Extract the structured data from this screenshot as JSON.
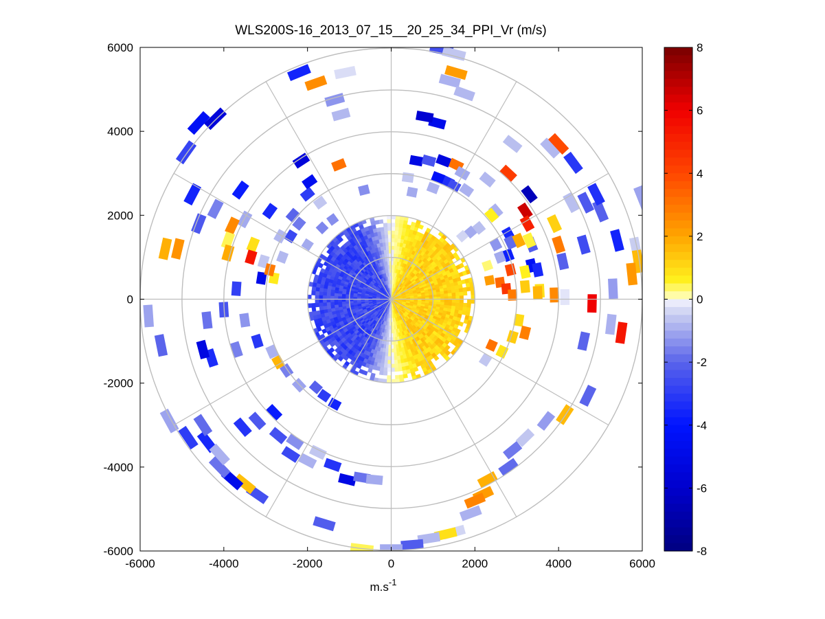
{
  "chart_data": {
    "type": "heatmap",
    "subtype": "polar PPI scan",
    "title": "WLS200S-16_2013_07_15__20_25_34_PPI_Vr (m/s)",
    "xlabel": "m.s",
    "xlabel_superscript": "-1",
    "ylabel": "",
    "xlim": [
      -6000,
      6000
    ],
    "ylim": [
      -6000,
      6000
    ],
    "xticks": [
      -6000,
      -4000,
      -2000,
      0,
      2000,
      4000,
      6000
    ],
    "yticks": [
      -6000,
      -4000,
      -2000,
      0,
      2000,
      4000,
      6000
    ],
    "xtick_labels": [
      "-6000",
      "-4000",
      "-2000",
      "0",
      "2000",
      "4000",
      "6000"
    ],
    "ytick_labels": [
      "-6000",
      "-4000",
      "-2000",
      "0",
      "2000",
      "4000",
      "6000"
    ],
    "polar_grid_radii": [
      1000,
      2000,
      3000,
      4000,
      5000,
      6000
    ],
    "polar_grid_angles_deg": [
      0,
      30,
      60,
      90,
      120,
      150,
      180,
      210,
      240,
      270,
      300,
      330
    ],
    "grid": true,
    "colorbar": {
      "min": -8,
      "max": 8,
      "ticks": [
        -8,
        -6,
        -4,
        -2,
        0,
        2,
        4,
        6,
        8
      ],
      "tick_labels": [
        "-8",
        "-6",
        "-4",
        "-2",
        "0",
        "2",
        "4",
        "6",
        "8"
      ],
      "placement": "right"
    },
    "dense_region": {
      "max_range": 2000,
      "description_values": "approaching (negative) west half, receding (positive) east half",
      "west_velocity": -2.7,
      "east_velocity": 1.1
    },
    "sparse_gates": [
      [
        1200,
        5950,
        -2.5
      ],
      [
        1500,
        5850,
        -0.6
      ],
      [
        1550,
        5400,
        2.2
      ],
      [
        1400,
        5200,
        -0.9
      ],
      [
        1750,
        4900,
        -0.8
      ],
      [
        1100,
        4200,
        -4.8
      ],
      [
        800,
        4350,
        -5.8
      ],
      [
        1550,
        3200,
        3.1
      ],
      [
        1350,
        2800,
        -3.3
      ],
      [
        1120,
        2900,
        -4.3
      ],
      [
        1250,
        3300,
        -5.3
      ],
      [
        1700,
        3000,
        -1.0
      ],
      [
        1800,
        2600,
        -0.9
      ],
      [
        2500,
        2100,
        -0.9
      ],
      [
        2800,
        1550,
        -3.5
      ],
      [
        2800,
        1050,
        -3.7
      ],
      [
        2850,
        1350,
        -1.9
      ],
      [
        3050,
        1400,
        1.9
      ],
      [
        3350,
        1300,
        -2.2
      ],
      [
        3350,
        800,
        -4.4
      ],
      [
        3300,
        2500,
        -6.5
      ],
      [
        3200,
        2100,
        6.6
      ],
      [
        3250,
        1800,
        5.1
      ],
      [
        4300,
        2300,
        -0.7
      ],
      [
        4650,
        2300,
        -2.3
      ],
      [
        5000,
        2100,
        -2.1
      ],
      [
        5400,
        1400,
        -3.6
      ],
      [
        5850,
        1200,
        -0.5
      ],
      [
        5900,
        900,
        1.6
      ],
      [
        5750,
        600,
        2.3
      ],
      [
        5300,
        250,
        -1.2
      ],
      [
        4600,
        1300,
        -2.6
      ],
      [
        4100,
        900,
        -2.1
      ],
      [
        3500,
        700,
        -3.5
      ],
      [
        3550,
        200,
        0.9
      ],
      [
        3900,
        100,
        2.6
      ],
      [
        4150,
        50,
        -0.2
      ],
      [
        4800,
        -100,
        6.0
      ],
      [
        5250,
        -600,
        -0.9
      ],
      [
        5500,
        -800,
        5.4
      ],
      [
        4600,
        -1000,
        -2.0
      ],
      [
        3200,
        650,
        0.6
      ],
      [
        3200,
        300,
        1.3
      ],
      [
        2900,
        -900,
        1.3
      ],
      [
        2650,
        -1250,
        0.8
      ],
      [
        2400,
        -1100,
        3.1
      ],
      [
        2250,
        -1450,
        -0.6
      ],
      [
        2600,
        1000,
        -1.0
      ],
      [
        2350,
        450,
        2.2
      ],
      [
        2600,
        400,
        3.3
      ],
      [
        2750,
        250,
        4.5
      ],
      [
        2850,
        700,
        4.0
      ],
      [
        2900,
        100,
        2.9
      ],
      [
        3050,
        -500,
        1.0
      ],
      [
        3200,
        -800,
        2.8
      ],
      [
        3500,
        150,
        1.7
      ],
      [
        4000,
        1300,
        2.9
      ],
      [
        3900,
        1800,
        1.2
      ],
      [
        3300,
        1400,
        0.5
      ],
      [
        2500,
        1300,
        -1.3
      ],
      [
        2300,
        800,
        0.3
      ],
      [
        1500,
        2700,
        -2.6
      ],
      [
        2300,
        2850,
        -0.8
      ],
      [
        2800,
        3000,
        4.3
      ],
      [
        2900,
        3700,
        -0.7
      ],
      [
        3800,
        3600,
        -0.8
      ],
      [
        4000,
        3700,
        3.9
      ],
      [
        4350,
        3250,
        -3.1
      ],
      [
        4900,
        2500,
        -3.3
      ],
      [
        6000,
        2400,
        -1.1
      ],
      [
        1900,
        1600,
        -1.0
      ],
      [
        1700,
        1500,
        -0.4
      ],
      [
        2100,
        1700,
        -0.7
      ],
      [
        2400,
        2000,
        0.6
      ],
      [
        600,
        3300,
        -5.1
      ],
      [
        900,
        3300,
        -2.4
      ],
      [
        400,
        2900,
        -0.6
      ],
      [
        1000,
        2650,
        -0.9
      ],
      [
        500,
        2550,
        -1.0
      ],
      [
        4700,
        -2300,
        -2.0
      ],
      [
        4150,
        -2750,
        1.6
      ],
      [
        3700,
        -2900,
        -1.2
      ],
      [
        3200,
        -3300,
        -0.6
      ],
      [
        2900,
        -3600,
        -1.7
      ],
      [
        2800,
        -4000,
        -1.9
      ],
      [
        2300,
        -4300,
        1.8
      ],
      [
        2200,
        -4650,
        2.2
      ],
      [
        2000,
        -4800,
        2.7
      ],
      [
        1900,
        -5100,
        -0.9
      ],
      [
        1500,
        -5550,
        -0.4
      ],
      [
        1300,
        -5600,
        0.9
      ],
      [
        900,
        -5700,
        -0.8
      ],
      [
        500,
        -5850,
        -2.2
      ],
      [
        0,
        -5950,
        -1.0
      ],
      [
        -700,
        -5950,
        0.4
      ],
      [
        -1600,
        -5350,
        -2.2
      ],
      [
        -3200,
        -4650,
        -2.5
      ],
      [
        -3500,
        -4400,
        1.5
      ],
      [
        -3800,
        -4300,
        -4.8
      ],
      [
        -4100,
        -4000,
        -1.8
      ],
      [
        -4400,
        -3400,
        -3.5
      ],
      [
        -4850,
        -3300,
        -3.0
      ],
      [
        -4500,
        -3000,
        -1.9
      ],
      [
        -5300,
        -2900,
        -1.1
      ],
      [
        -4100,
        -3700,
        -0.9
      ],
      [
        -3550,
        -3050,
        -3.2
      ],
      [
        -3200,
        -2900,
        -2.3
      ],
      [
        -2800,
        -2700,
        -3.8
      ],
      [
        -2700,
        -3250,
        -2.5
      ],
      [
        -2400,
        -3700,
        -2.7
      ],
      [
        -2300,
        -3400,
        -1.4
      ],
      [
        -2000,
        -3850,
        -0.9
      ],
      [
        -1750,
        -3650,
        -0.6
      ],
      [
        -1400,
        -3950,
        -3.2
      ],
      [
        -1050,
        -4300,
        -5.1
      ],
      [
        -700,
        -4250,
        -1.8
      ],
      [
        -400,
        -4300,
        -1.0
      ],
      [
        -1350,
        -2500,
        -3.6
      ],
      [
        -1600,
        -2300,
        -3.0
      ],
      [
        -1800,
        -2100,
        -2.1
      ],
      [
        -2200,
        -2050,
        -1.1
      ],
      [
        -2500,
        -1700,
        -1.6
      ],
      [
        -2700,
        -1500,
        1.7
      ],
      [
        -2850,
        -1250,
        -0.9
      ],
      [
        -3200,
        -1000,
        -3.1
      ],
      [
        -3700,
        -1200,
        -1.6
      ],
      [
        -4300,
        -1400,
        -3.4
      ],
      [
        -4500,
        -1200,
        -5.2
      ],
      [
        -5500,
        -1100,
        -2.0
      ],
      [
        -5800,
        -400,
        -1.1
      ],
      [
        -4400,
        -500,
        -1.8
      ],
      [
        -4000,
        -250,
        -2.4
      ],
      [
        -3500,
        -500,
        -1.3
      ],
      [
        -3700,
        250,
        -2.9
      ],
      [
        -3100,
        500,
        -4.9
      ],
      [
        -2800,
        500,
        0.7
      ],
      [
        -2600,
        1000,
        -0.8
      ],
      [
        -2400,
        1500,
        -2.7
      ],
      [
        -2650,
        1500,
        -0.8
      ],
      [
        -2200,
        1800,
        -1.7
      ],
      [
        -2350,
        2000,
        -2.0
      ],
      [
        -2900,
        2100,
        -3.5
      ],
      [
        -3500,
        1900,
        -1.0
      ],
      [
        -3800,
        1750,
        2.6
      ],
      [
        -3900,
        1400,
        0.4
      ],
      [
        -3900,
        1100,
        1.9
      ],
      [
        -3300,
        1300,
        0.9
      ],
      [
        -3350,
        1000,
        5.4
      ],
      [
        -3050,
        900,
        -0.6
      ],
      [
        -2900,
        700,
        2.9
      ],
      [
        -2000,
        1300,
        -1.0
      ],
      [
        -1650,
        1700,
        -1.5
      ],
      [
        -1400,
        1900,
        -1.4
      ],
      [
        -1700,
        2300,
        -0.6
      ],
      [
        -2000,
        2500,
        -3.0
      ],
      [
        -1950,
        2800,
        -4.6
      ],
      [
        -2150,
        3300,
        -5.5
      ],
      [
        -1250,
        3200,
        3.1
      ],
      [
        -650,
        2600,
        -1.4
      ],
      [
        -3600,
        2600,
        -3.8
      ],
      [
        -4200,
        2150,
        -1.6
      ],
      [
        -4750,
        2500,
        -3.6
      ],
      [
        -5100,
        1200,
        2.4
      ],
      [
        -5400,
        1200,
        1.8
      ],
      [
        -4600,
        1800,
        -2.3
      ],
      [
        -4900,
        3500,
        -2.8
      ],
      [
        -4600,
        4200,
        -4.4
      ],
      [
        -4200,
        4300,
        -5.5
      ],
      [
        -1800,
        5150,
        2.5
      ],
      [
        -1350,
        4750,
        -1.3
      ],
      [
        -1200,
        4400,
        -0.8
      ],
      [
        -2200,
        5400,
        -3.6
      ],
      [
        -1100,
        5400,
        -0.3
      ]
    ]
  }
}
